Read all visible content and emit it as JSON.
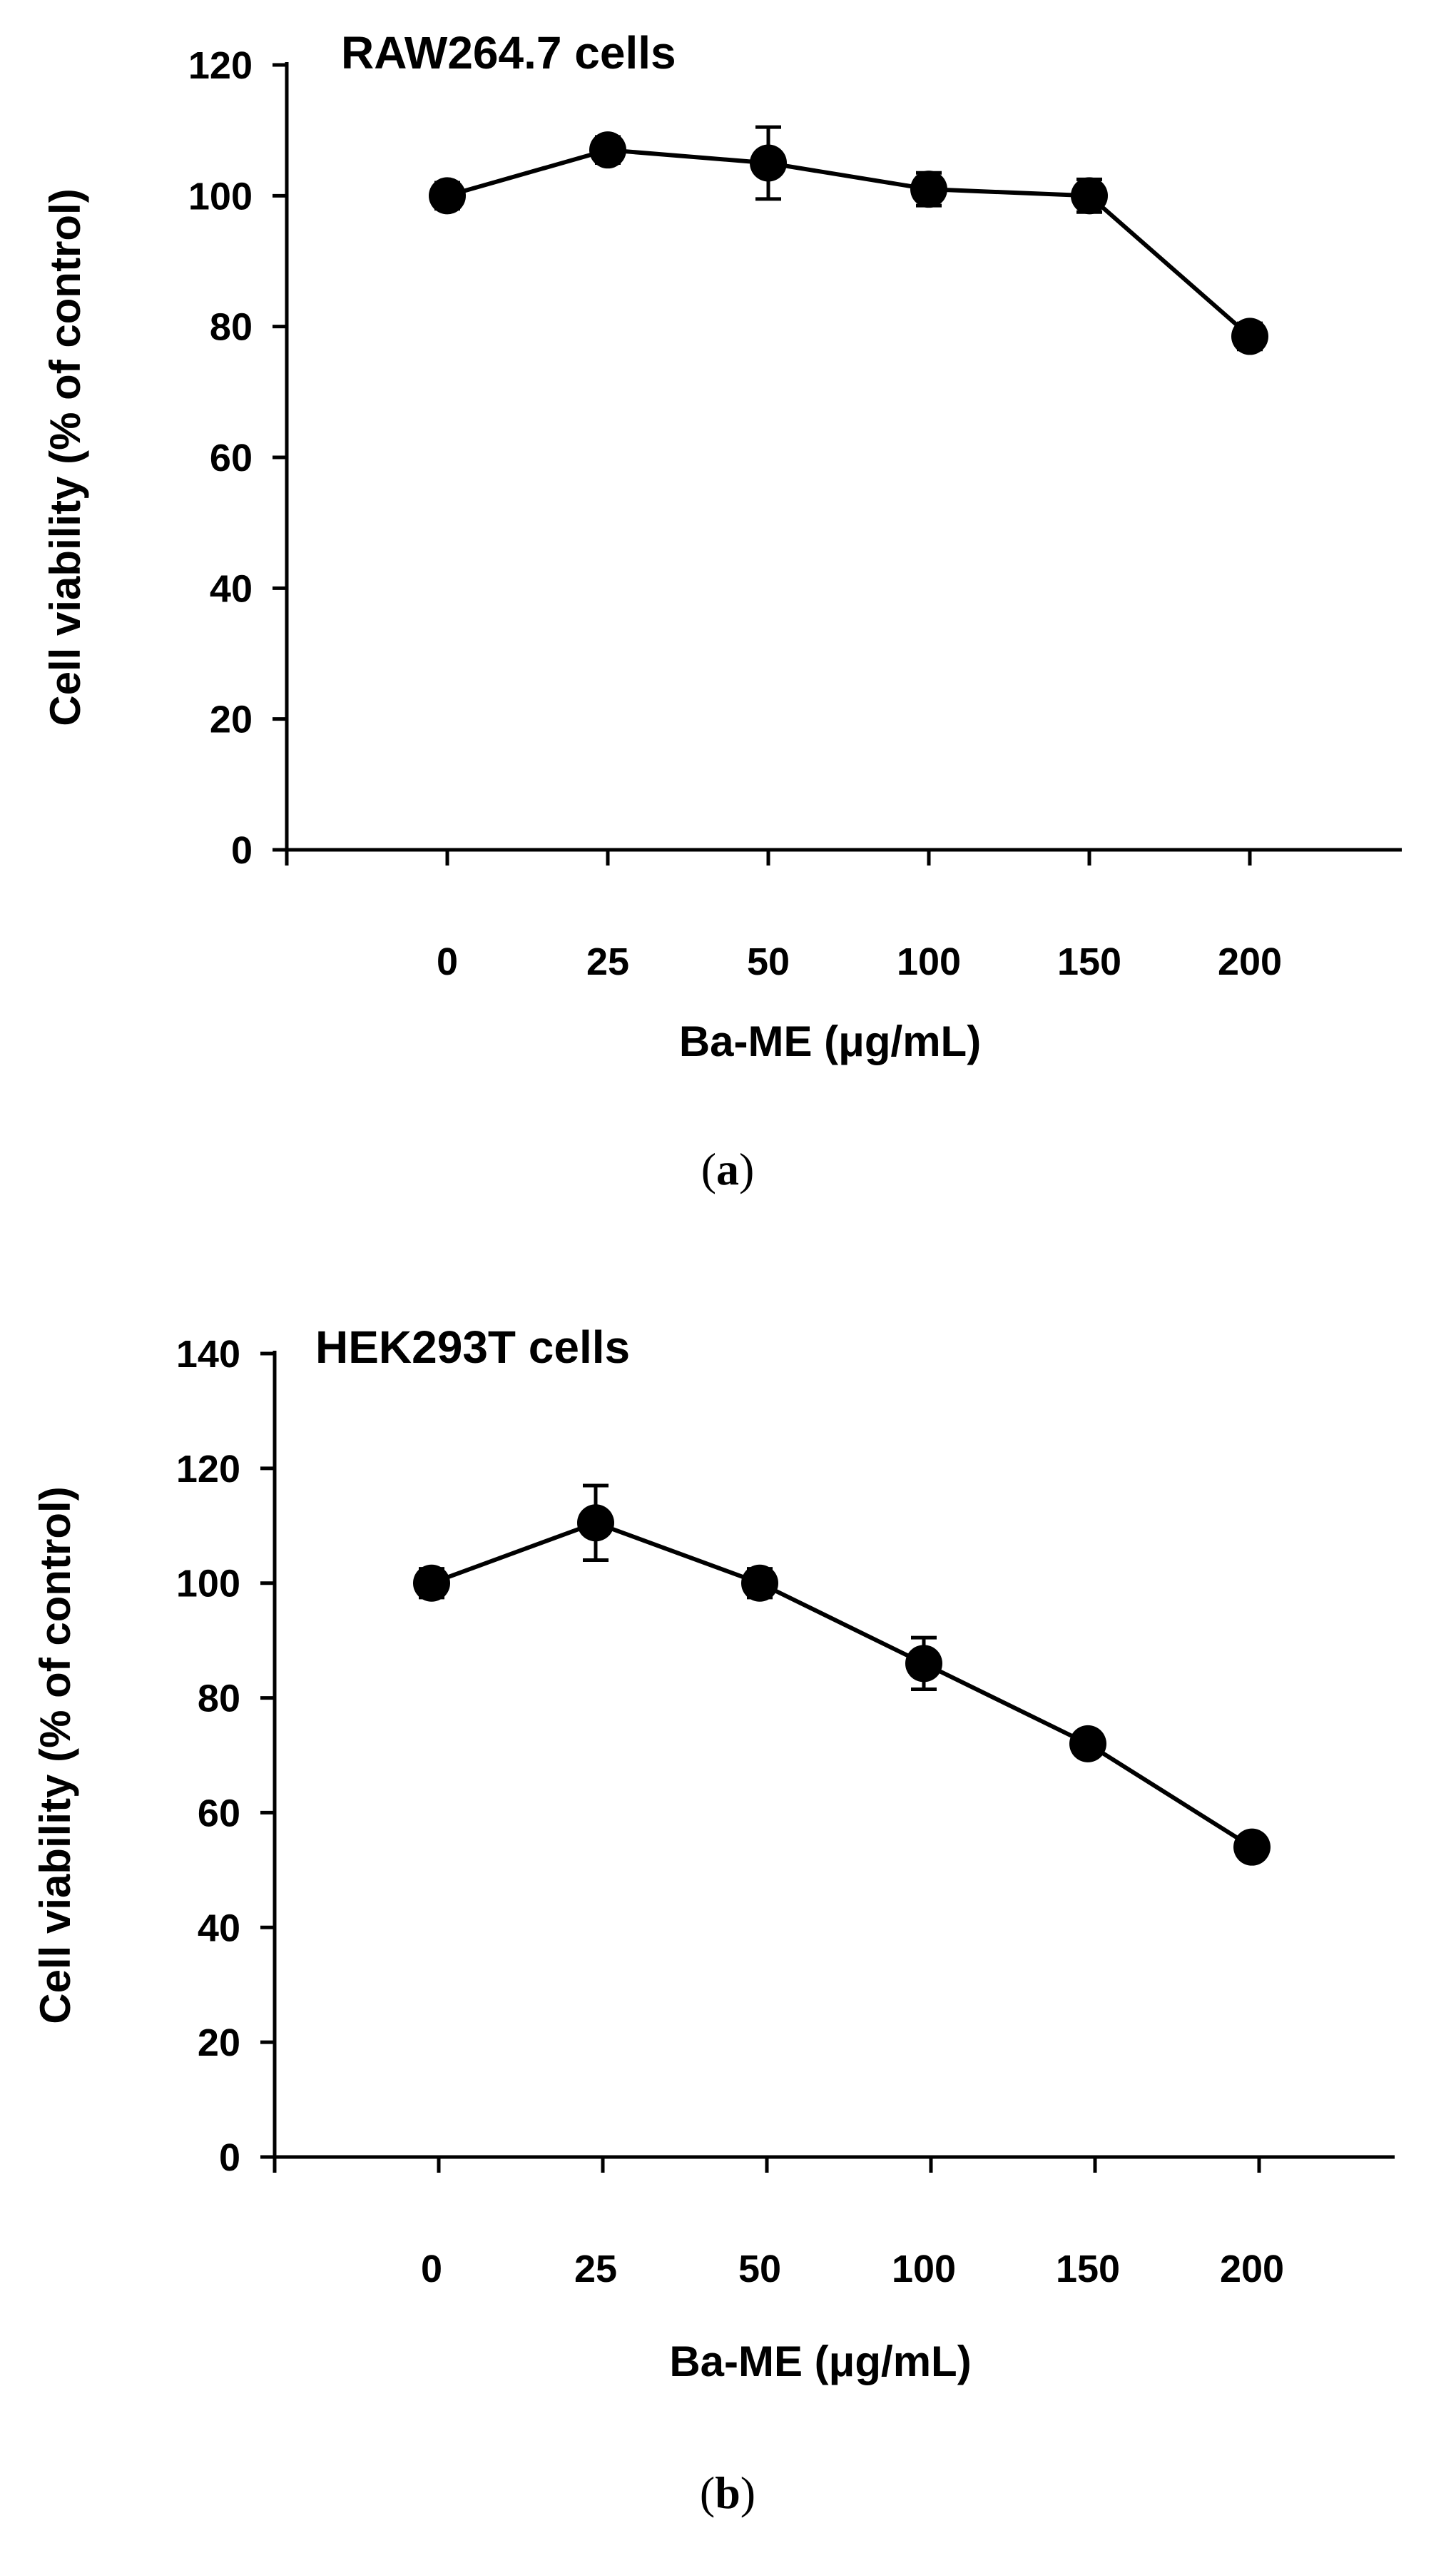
{
  "chart_data": [
    {
      "type": "line",
      "panel_label": "a",
      "title": "RAW264.7 cells",
      "xlabel": "Ba-ME (μg/mL)",
      "ylabel": "Cell viability (% of control)",
      "categories": [
        "0",
        "25",
        "50",
        "100",
        "150",
        "200"
      ],
      "series": [
        {
          "values": [
            100,
            107,
            105,
            101,
            100,
            78.5
          ],
          "errors": [
            2,
            2,
            5.5,
            2.5,
            2.5,
            2
          ]
        }
      ],
      "ylim": [
        0,
        120
      ],
      "yticks": [
        0,
        20,
        40,
        60,
        80,
        100,
        120
      ],
      "grid": false,
      "legend": "none"
    },
    {
      "type": "line",
      "panel_label": "b",
      "title": "HEK293T cells",
      "xlabel": "Ba-ME (μg/mL)",
      "ylabel": "Cell viability (% of control)",
      "categories": [
        "0",
        "25",
        "50",
        "100",
        "150",
        "200"
      ],
      "series": [
        {
          "values": [
            100,
            110.5,
            100,
            86,
            72,
            54
          ],
          "errors": [
            2.5,
            6.5,
            2.5,
            4.5,
            2,
            1.5
          ]
        }
      ],
      "ylim": [
        0,
        140
      ],
      "yticks": [
        0,
        20,
        40,
        60,
        80,
        100,
        120,
        140
      ],
      "grid": false,
      "legend": "none"
    }
  ]
}
